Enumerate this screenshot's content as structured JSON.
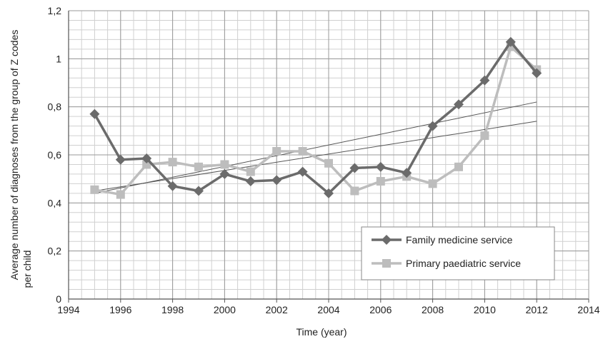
{
  "chart_data": {
    "type": "line",
    "xlabel": "Time (year)",
    "ylabel": "Average number of diagnoses from the group of Z codes per child",
    "xlim": [
      1994,
      2014
    ],
    "ylim": [
      0,
      1.2
    ],
    "xticks": [
      1994,
      1996,
      1998,
      2000,
      2002,
      2004,
      2006,
      2008,
      2010,
      2012,
      2014
    ],
    "xtick_labels": [
      "1994",
      "1996",
      "1998",
      "2000",
      "2002",
      "2004",
      "2006",
      "2008",
      "2010",
      "2012",
      "2014"
    ],
    "yticks": [
      0,
      0.2,
      0.4,
      0.6,
      0.8,
      1.0,
      1.2
    ],
    "ytick_labels": [
      "0",
      "0,2",
      "0,4",
      "0,6",
      "0,8",
      "1",
      "1,2"
    ],
    "grid": true,
    "legend_position": "bottom-right",
    "series": [
      {
        "name": "Family medicine service",
        "marker": "diamond",
        "color": "#6b6b6b",
        "x": [
          1995,
          1996,
          1997,
          1998,
          1999,
          2000,
          2001,
          2002,
          2003,
          2004,
          2005,
          2006,
          2007,
          2008,
          2009,
          2010,
          2011,
          2012
        ],
        "values": [
          0.77,
          0.58,
          0.585,
          0.47,
          0.45,
          0.52,
          0.49,
          0.495,
          0.53,
          0.44,
          0.545,
          0.55,
          0.525,
          0.72,
          0.81,
          0.91,
          1.07,
          0.94
        ]
      },
      {
        "name": "Primary paediatric service",
        "marker": "square",
        "color": "#bdbdbd",
        "x": [
          1995,
          1996,
          1997,
          1998,
          1999,
          2000,
          2001,
          2002,
          2003,
          2004,
          2005,
          2006,
          2007,
          2008,
          2009,
          2010,
          2011,
          2012
        ],
        "values": [
          0.455,
          0.435,
          0.56,
          0.57,
          0.55,
          0.56,
          0.53,
          0.615,
          0.615,
          0.565,
          0.45,
          0.49,
          0.51,
          0.48,
          0.55,
          0.68,
          1.05,
          0.955
        ]
      }
    ],
    "trendlines": [
      {
        "x": [
          1995,
          2012
        ],
        "values": [
          0.44,
          0.82
        ],
        "color": "#555555"
      },
      {
        "x": [
          1995,
          2012
        ],
        "values": [
          0.45,
          0.74
        ],
        "color": "#555555"
      }
    ]
  }
}
